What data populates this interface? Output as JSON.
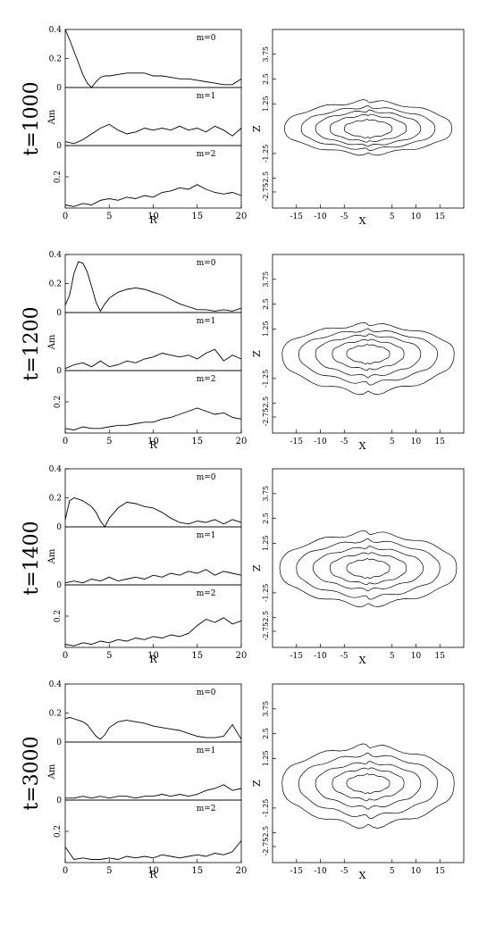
{
  "chart_data": [
    {
      "type": "line",
      "time_label": "t=1000",
      "amplitude_panels": {
        "xlabel": "R",
        "ylabel": "Am",
        "xlim": [
          0,
          20
        ],
        "xticks": [
          "0",
          "5",
          "10",
          "15",
          "20"
        ],
        "panels": [
          {
            "label": "m=0",
            "ylim": [
              0,
              0.4
            ],
            "yticks": [
              "0",
              "0.2",
              "0.4"
            ],
            "x": [
              0,
              0.5,
              1,
              1.5,
              2,
              2.5,
              3,
              3.5,
              4,
              4.5,
              5,
              6,
              7,
              8,
              9,
              10,
              11,
              12,
              13,
              14,
              15,
              16,
              17,
              18,
              19,
              20
            ],
            "values": [
              0.4,
              0.33,
              0.25,
              0.17,
              0.09,
              0.03,
              0.0,
              0.04,
              0.07,
              0.08,
              0.08,
              0.09,
              0.1,
              0.1,
              0.1,
              0.08,
              0.08,
              0.07,
              0.06,
              0.06,
              0.05,
              0.04,
              0.03,
              0.02,
              0.02,
              0.06
            ]
          },
          {
            "label": "m=1",
            "ylim": [
              0,
              0.3
            ],
            "yticks": [
              "0"
            ],
            "x": [
              0,
              1,
              2,
              3,
              4,
              5,
              6,
              7,
              8,
              9,
              10,
              11,
              12,
              13,
              14,
              15,
              16,
              17,
              18,
              19,
              20
            ],
            "values": [
              0.02,
              0.01,
              0.03,
              0.06,
              0.09,
              0.11,
              0.08,
              0.06,
              0.07,
              0.09,
              0.08,
              0.09,
              0.08,
              0.1,
              0.08,
              0.09,
              0.07,
              0.1,
              0.08,
              0.05,
              0.09
            ]
          },
          {
            "label": "m=2",
            "ylim": [
              0,
              0.4
            ],
            "yticks": [
              "0.2"
            ],
            "x": [
              0,
              1,
              2,
              3,
              4,
              5,
              6,
              7,
              8,
              9,
              10,
              11,
              12,
              13,
              14,
              15,
              16,
              17,
              18,
              19,
              20
            ],
            "values": [
              0.02,
              0.01,
              0.03,
              0.02,
              0.05,
              0.06,
              0.05,
              0.07,
              0.06,
              0.08,
              0.07,
              0.1,
              0.11,
              0.13,
              0.12,
              0.15,
              0.12,
              0.1,
              0.09,
              0.1,
              0.08
            ]
          }
        ]
      },
      "contour_panel": {
        "xlabel": "X",
        "ylabel": "Z",
        "xlim": [
          -20,
          20
        ],
        "ylim": [
          -4,
          5
        ],
        "xticks": [
          "-15",
          "-10",
          "-5",
          "5",
          "10",
          "15"
        ],
        "yticks": [
          "3.75",
          "2.5",
          "1.25",
          "-1.25",
          "-2.5",
          "-2.75"
        ],
        "contours": [
          {
            "hw": 17.5,
            "h": 1.4,
            "b": 1.3
          },
          {
            "hw": 14,
            "h": 1.1,
            "b": 1.05
          },
          {
            "hw": 11,
            "h": 0.9,
            "b": 0.85
          },
          {
            "hw": 8,
            "h": 0.7,
            "b": 0.65
          },
          {
            "hw": 5,
            "h": 0.45,
            "b": 0.45
          }
        ]
      }
    },
    {
      "type": "line",
      "time_label": "t=1200",
      "amplitude_panels": {
        "xlabel": "R",
        "ylabel": "Am",
        "xlim": [
          0,
          20
        ],
        "xticks": [
          "0",
          "5",
          "10",
          "15",
          "20"
        ],
        "panels": [
          {
            "label": "m=0",
            "ylim": [
              0,
              0.4
            ],
            "yticks": [
              "0",
              "0.2",
              "0.4"
            ],
            "x": [
              0,
              0.5,
              1,
              1.5,
              2,
              2.5,
              3,
              3.5,
              4,
              4.5,
              5,
              6,
              7,
              8,
              9,
              10,
              11,
              12,
              13,
              14,
              15,
              16,
              17,
              18,
              19,
              20
            ],
            "values": [
              0.05,
              0.12,
              0.27,
              0.35,
              0.34,
              0.28,
              0.18,
              0.07,
              0.01,
              0.06,
              0.1,
              0.14,
              0.16,
              0.17,
              0.16,
              0.14,
              0.12,
              0.09,
              0.06,
              0.04,
              0.02,
              0.02,
              0.01,
              0.02,
              0.01,
              0.03
            ]
          },
          {
            "label": "m=1",
            "ylim": [
              0,
              0.3
            ],
            "yticks": [
              "0"
            ],
            "x": [
              0,
              1,
              2,
              3,
              4,
              5,
              6,
              7,
              8,
              9,
              10,
              11,
              12,
              13,
              14,
              15,
              16,
              17,
              18,
              19,
              20
            ],
            "values": [
              0.01,
              0.03,
              0.04,
              0.02,
              0.05,
              0.02,
              0.03,
              0.05,
              0.04,
              0.06,
              0.07,
              0.09,
              0.08,
              0.07,
              0.08,
              0.06,
              0.09,
              0.11,
              0.05,
              0.08,
              0.06
            ]
          },
          {
            "label": "m=2",
            "ylim": [
              0,
              0.4
            ],
            "yticks": [
              "0.2"
            ],
            "x": [
              0,
              1,
              2,
              3,
              4,
              5,
              6,
              7,
              8,
              9,
              10,
              11,
              12,
              13,
              14,
              15,
              16,
              17,
              18,
              19,
              20
            ],
            "values": [
              0.03,
              0.02,
              0.04,
              0.03,
              0.03,
              0.04,
              0.05,
              0.05,
              0.06,
              0.07,
              0.07,
              0.09,
              0.1,
              0.12,
              0.14,
              0.16,
              0.14,
              0.12,
              0.13,
              0.1,
              0.09
            ]
          }
        ]
      },
      "contour_panel": {
        "xlabel": "X",
        "ylabel": "Z",
        "xlim": [
          -20,
          20
        ],
        "ylim": [
          -4,
          5
        ],
        "xticks": [
          "-15",
          "-10",
          "-5",
          "5",
          "10",
          "15"
        ],
        "yticks": [
          "3.75",
          "2.5",
          "1.25",
          "-1.25",
          "-2.5",
          "-2.75"
        ],
        "contours": [
          {
            "hw": 18,
            "h": 1.5,
            "b": 2.0
          },
          {
            "hw": 14.5,
            "h": 1.2,
            "b": 1.5
          },
          {
            "hw": 11,
            "h": 0.95,
            "b": 1.15
          },
          {
            "hw": 7.5,
            "h": 0.7,
            "b": 0.8
          },
          {
            "hw": 4.5,
            "h": 0.45,
            "b": 0.5
          }
        ]
      }
    },
    {
      "type": "line",
      "time_label": "t=1400",
      "amplitude_panels": {
        "xlabel": "R",
        "ylabel": "Am",
        "xlim": [
          0,
          20
        ],
        "xticks": [
          "0",
          "5",
          "10",
          "15",
          "20"
        ],
        "panels": [
          {
            "label": "m=0",
            "ylim": [
              0,
              0.4
            ],
            "yticks": [
              "0",
              "0.2",
              "0.4"
            ],
            "x": [
              0,
              0.5,
              1,
              1.5,
              2,
              2.5,
              3,
              3.5,
              4,
              4.5,
              5,
              6,
              7,
              8,
              9,
              10,
              11,
              12,
              13,
              14,
              15,
              16,
              17,
              18,
              19,
              20
            ],
            "values": [
              0.05,
              0.18,
              0.2,
              0.19,
              0.18,
              0.16,
              0.14,
              0.1,
              0.04,
              0.0,
              0.06,
              0.13,
              0.17,
              0.16,
              0.14,
              0.13,
              0.1,
              0.06,
              0.03,
              0.02,
              0.04,
              0.03,
              0.05,
              0.02,
              0.05,
              0.03
            ]
          },
          {
            "label": "m=1",
            "ylim": [
              0,
              0.3
            ],
            "yticks": [
              "0"
            ],
            "x": [
              0,
              1,
              2,
              3,
              4,
              5,
              6,
              7,
              8,
              9,
              10,
              11,
              12,
              13,
              14,
              15,
              16,
              17,
              18,
              19,
              20
            ],
            "values": [
              0.01,
              0.02,
              0.01,
              0.03,
              0.02,
              0.04,
              0.02,
              0.03,
              0.04,
              0.03,
              0.05,
              0.04,
              0.06,
              0.05,
              0.07,
              0.06,
              0.08,
              0.05,
              0.07,
              0.06,
              0.05
            ]
          },
          {
            "label": "m=2",
            "ylim": [
              0,
              0.4
            ],
            "yticks": [
              "0.2"
            ],
            "x": [
              0,
              1,
              2,
              3,
              4,
              5,
              6,
              7,
              8,
              9,
              10,
              11,
              12,
              13,
              14,
              15,
              16,
              17,
              18,
              19,
              20
            ],
            "values": [
              0.02,
              0.01,
              0.03,
              0.02,
              0.04,
              0.03,
              0.05,
              0.04,
              0.06,
              0.05,
              0.07,
              0.06,
              0.08,
              0.07,
              0.09,
              0.14,
              0.18,
              0.16,
              0.19,
              0.15,
              0.17
            ]
          }
        ]
      },
      "contour_panel": {
        "xlabel": "X",
        "ylabel": "Z",
        "xlim": [
          -20,
          20
        ],
        "ylim": [
          -4,
          5
        ],
        "xticks": [
          "-15",
          "-10",
          "-5",
          "5",
          "10",
          "15"
        ],
        "yticks": [
          "3.75",
          "2.5",
          "1.25",
          "-1.25",
          "-2.5",
          "-2.75"
        ],
        "contours": [
          {
            "hw": 18.5,
            "h": 1.8,
            "b": 1.9
          },
          {
            "hw": 15,
            "h": 1.4,
            "b": 1.5
          },
          {
            "hw": 11.5,
            "h": 1.05,
            "b": 1.1
          },
          {
            "hw": 8,
            "h": 0.75,
            "b": 0.8
          },
          {
            "hw": 4.5,
            "h": 0.45,
            "b": 0.5
          }
        ]
      }
    },
    {
      "type": "line",
      "time_label": "t=3000",
      "amplitude_panels": {
        "xlabel": "R",
        "ylabel": "Am",
        "xlim": [
          0,
          20
        ],
        "xticks": [
          "0",
          "5",
          "10",
          "15",
          "20"
        ],
        "panels": [
          {
            "label": "m=0",
            "ylim": [
              0,
              0.4
            ],
            "yticks": [
              "0",
              "0.2",
              "0.4"
            ],
            "x": [
              0,
              0.5,
              1,
              1.5,
              2,
              2.5,
              3,
              3.5,
              4,
              4.5,
              5,
              6,
              7,
              8,
              9,
              10,
              11,
              12,
              13,
              14,
              15,
              16,
              17,
              18,
              19,
              20
            ],
            "values": [
              0.16,
              0.17,
              0.16,
              0.15,
              0.14,
              0.12,
              0.08,
              0.04,
              0.02,
              0.05,
              0.1,
              0.14,
              0.15,
              0.14,
              0.13,
              0.11,
              0.1,
              0.09,
              0.08,
              0.06,
              0.04,
              0.03,
              0.03,
              0.04,
              0.12,
              0.02
            ]
          },
          {
            "label": "m=1",
            "ylim": [
              0,
              0.3
            ],
            "yticks": [
              "0"
            ],
            "x": [
              0,
              1,
              2,
              3,
              4,
              5,
              6,
              7,
              8,
              9,
              10,
              11,
              12,
              13,
              14,
              15,
              16,
              17,
              18,
              19,
              20
            ],
            "values": [
              0.01,
              0.01,
              0.02,
              0.01,
              0.02,
              0.01,
              0.02,
              0.02,
              0.01,
              0.02,
              0.02,
              0.03,
              0.02,
              0.03,
              0.02,
              0.03,
              0.05,
              0.06,
              0.08,
              0.05,
              0.06
            ]
          },
          {
            "label": "m=2",
            "ylim": [
              0,
              0.4
            ],
            "yticks": [
              "0.2"
            ],
            "x": [
              0,
              1,
              2,
              3,
              4,
              5,
              6,
              7,
              8,
              9,
              10,
              11,
              12,
              13,
              14,
              15,
              16,
              17,
              18,
              19,
              20
            ],
            "values": [
              0.1,
              0.02,
              0.03,
              0.02,
              0.02,
              0.03,
              0.02,
              0.04,
              0.03,
              0.04,
              0.03,
              0.05,
              0.04,
              0.03,
              0.04,
              0.05,
              0.04,
              0.06,
              0.05,
              0.07,
              0.14
            ]
          }
        ]
      },
      "contour_panel": {
        "xlabel": "X",
        "ylabel": "Z",
        "xlim": [
          -20,
          20
        ],
        "ylim": [
          -4,
          5
        ],
        "xticks": [
          "-15",
          "-10",
          "-5",
          "5",
          "10",
          "15"
        ],
        "yticks": [
          "3.75",
          "2.5",
          "1.25",
          "-1.25",
          "-2.5",
          "-2.75"
        ],
        "contours": [
          {
            "hw": 18,
            "h": 1.9,
            "b": 2.2
          },
          {
            "hw": 14.5,
            "h": 1.45,
            "b": 1.7
          },
          {
            "hw": 11,
            "h": 1.05,
            "b": 1.25
          },
          {
            "hw": 7.5,
            "h": 0.75,
            "b": 0.85
          },
          {
            "hw": 4.5,
            "h": 0.45,
            "b": 0.5
          }
        ]
      }
    }
  ]
}
